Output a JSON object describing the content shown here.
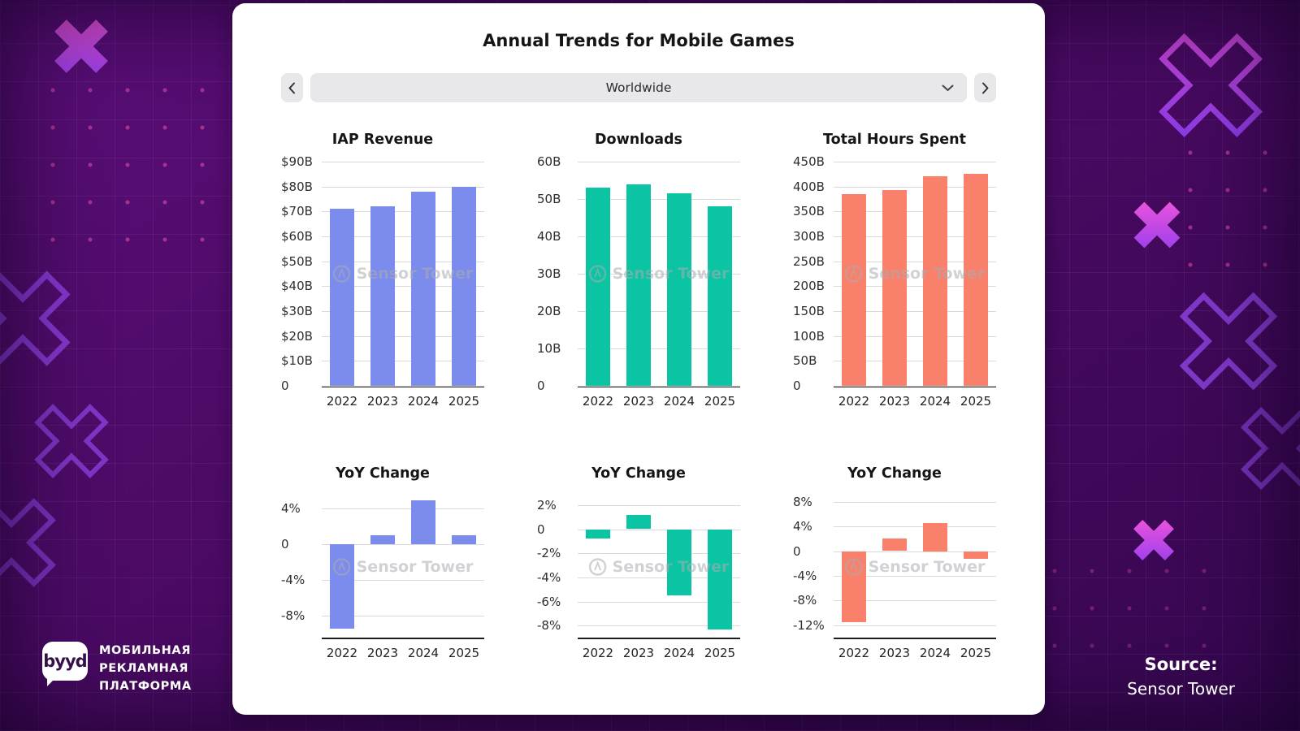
{
  "card": {
    "title": "Annual Trends for Mobile Games",
    "region_selector": {
      "value": "Worldwide",
      "prev_icon": "chevron-left",
      "next_icon": "chevron-right",
      "dropdown_icon": "chevron-down"
    },
    "watermark_text": "Sensor Tower"
  },
  "branding": {
    "logo_text": "byyd",
    "tagline_line1": "МОБИЛЬНАЯ",
    "tagline_line2": "РЕКЛАМНАЯ",
    "tagline_line3": "ПЛАТФОРМА"
  },
  "source": {
    "label": "Source:",
    "value": "Sensor Tower"
  },
  "colors": {
    "revenue": "#7b8cec",
    "downloads": "#0bc4a4",
    "hours": "#f9816b",
    "background_purple": "#4a0a63"
  },
  "chart_data": [
    {
      "type": "bar",
      "title": "IAP Revenue",
      "categories": [
        "2022",
        "2023",
        "2024",
        "2025"
      ],
      "values": [
        71,
        72,
        78,
        80
      ],
      "unit": "$B",
      "color": "#7b8cec",
      "ylim": [
        0,
        90
      ],
      "yticks": [
        {
          "value": 90,
          "label": "$90B"
        },
        {
          "value": 80,
          "label": "$80B"
        },
        {
          "value": 70,
          "label": "$70B"
        },
        {
          "value": 60,
          "label": "$60B"
        },
        {
          "value": 50,
          "label": "$50B"
        },
        {
          "value": 40,
          "label": "$40B"
        },
        {
          "value": 30,
          "label": "$30B"
        },
        {
          "value": 20,
          "label": "$20B"
        },
        {
          "value": 10,
          "label": "$10B"
        },
        {
          "value": 0,
          "label": "0"
        }
      ]
    },
    {
      "type": "bar",
      "title": "Downloads",
      "categories": [
        "2022",
        "2023",
        "2024",
        "2025"
      ],
      "values": [
        53,
        54,
        51.5,
        48
      ],
      "unit": "B",
      "color": "#0bc4a4",
      "ylim": [
        0,
        60
      ],
      "yticks": [
        {
          "value": 60,
          "label": "60B"
        },
        {
          "value": 50,
          "label": "50B"
        },
        {
          "value": 40,
          "label": "40B"
        },
        {
          "value": 30,
          "label": "30B"
        },
        {
          "value": 20,
          "label": "20B"
        },
        {
          "value": 10,
          "label": "10B"
        },
        {
          "value": 0,
          "label": "0"
        }
      ]
    },
    {
      "type": "bar",
      "title": "Total Hours Spent",
      "categories": [
        "2022",
        "2023",
        "2024",
        "2025"
      ],
      "values": [
        385,
        393,
        420,
        425
      ],
      "unit": "B",
      "color": "#f9816b",
      "ylim": [
        0,
        450
      ],
      "yticks": [
        {
          "value": 450,
          "label": "450B"
        },
        {
          "value": 400,
          "label": "400B"
        },
        {
          "value": 350,
          "label": "350B"
        },
        {
          "value": 300,
          "label": "300B"
        },
        {
          "value": 250,
          "label": "250B"
        },
        {
          "value": 200,
          "label": "200B"
        },
        {
          "value": 150,
          "label": "150B"
        },
        {
          "value": 100,
          "label": "100B"
        },
        {
          "value": 50,
          "label": "50B"
        },
        {
          "value": 0,
          "label": "0"
        }
      ]
    },
    {
      "type": "bar",
      "title": "YoY Change",
      "categories": [
        "2022",
        "2023",
        "2024",
        "2025"
      ],
      "values": [
        -9.5,
        1,
        5,
        1
      ],
      "unit": "%",
      "color": "#7b8cec",
      "ylim": [
        -10.5,
        5.5
      ],
      "yticks": [
        {
          "value": 4,
          "label": "4%"
        },
        {
          "value": 0,
          "label": "0"
        },
        {
          "value": -4,
          "label": "-4%"
        },
        {
          "value": -8,
          "label": "-8%"
        }
      ]
    },
    {
      "type": "bar",
      "title": "YoY Change",
      "categories": [
        "2022",
        "2023",
        "2024",
        "2025"
      ],
      "values": [
        -0.8,
        1.2,
        -5.5,
        -8.3
      ],
      "unit": "%",
      "color": "#0bc4a4",
      "ylim": [
        -9,
        2.8
      ],
      "yticks": [
        {
          "value": 2,
          "label": "2%"
        },
        {
          "value": 0,
          "label": "0"
        },
        {
          "value": -2,
          "label": "-2%"
        },
        {
          "value": -4,
          "label": "-4%"
        },
        {
          "value": -6,
          "label": "-6%"
        },
        {
          "value": -8,
          "label": "-8%"
        }
      ]
    },
    {
      "type": "bar",
      "title": "YoY Change",
      "categories": [
        "2022",
        "2023",
        "2024",
        "2025"
      ],
      "values": [
        -11.5,
        2,
        4.6,
        -1.3
      ],
      "unit": "%",
      "color": "#f9816b",
      "ylim": [
        -14,
        9
      ],
      "yticks": [
        {
          "value": 8,
          "label": "8%"
        },
        {
          "value": 4,
          "label": "4%"
        },
        {
          "value": 0,
          "label": "0"
        },
        {
          "value": -4,
          "label": "-4%"
        },
        {
          "value": -8,
          "label": "-8%"
        },
        {
          "value": -12,
          "label": "-12%"
        }
      ]
    }
  ]
}
